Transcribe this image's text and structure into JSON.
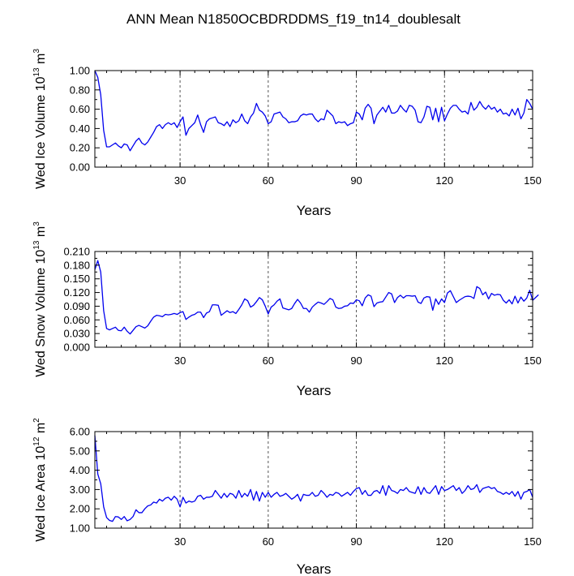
{
  "title": "ANN Mean N1850OCBDRDDMS_f19_tn14_doublesalt",
  "colors": {
    "series": "#0000ee",
    "axis": "#000000",
    "grid": "#555555"
  },
  "chart_data": [
    {
      "type": "line",
      "xlabel": "Years",
      "ylabel": {
        "prefix": "Wed Ice Volume 10",
        "exp": "13",
        "unit": " m",
        "unit_exp": "3"
      },
      "xlim": [
        1,
        150
      ],
      "ylim": [
        0,
        1
      ],
      "xticks": [
        30,
        60,
        90,
        120,
        150
      ],
      "yticks": [
        "0.00",
        "0.20",
        "0.40",
        "0.60",
        "0.80",
        "1.00"
      ],
      "yticks_minor": [
        0.1,
        0.3,
        0.5,
        0.7,
        0.9
      ],
      "grid_x": [
        30,
        60,
        90,
        120
      ],
      "x_start": 1,
      "values": [
        1.0,
        0.93,
        0.75,
        0.38,
        0.21,
        0.21,
        0.23,
        0.25,
        0.22,
        0.2,
        0.24,
        0.23,
        0.17,
        0.22,
        0.27,
        0.3,
        0.25,
        0.23,
        0.26,
        0.31,
        0.36,
        0.42,
        0.44,
        0.4,
        0.44,
        0.46,
        0.44,
        0.46,
        0.41,
        0.47,
        0.52,
        0.33,
        0.4,
        0.43,
        0.46,
        0.54,
        0.44,
        0.36,
        0.47,
        0.5,
        0.51,
        0.52,
        0.46,
        0.45,
        0.43,
        0.47,
        0.42,
        0.49,
        0.46,
        0.48,
        0.55,
        0.48,
        0.45,
        0.52,
        0.56,
        0.66,
        0.59,
        0.57,
        0.53,
        0.45,
        0.47,
        0.55,
        0.56,
        0.57,
        0.52,
        0.5,
        0.46,
        0.47,
        0.47,
        0.48,
        0.53,
        0.55,
        0.54,
        0.55,
        0.55,
        0.5,
        0.47,
        0.5,
        0.49,
        0.59,
        0.56,
        0.53,
        0.45,
        0.47,
        0.46,
        0.47,
        0.43,
        0.45,
        0.46,
        0.57,
        0.55,
        0.49,
        0.61,
        0.65,
        0.61,
        0.45,
        0.54,
        0.58,
        0.62,
        0.57,
        0.64,
        0.56,
        0.56,
        0.58,
        0.64,
        0.6,
        0.57,
        0.64,
        0.63,
        0.59,
        0.47,
        0.46,
        0.52,
        0.63,
        0.62,
        0.49,
        0.61,
        0.47,
        0.62,
        0.48,
        0.55,
        0.61,
        0.64,
        0.64,
        0.6,
        0.57,
        0.58,
        0.55,
        0.67,
        0.59,
        0.62,
        0.68,
        0.63,
        0.6,
        0.64,
        0.6,
        0.62,
        0.57,
        0.6,
        0.55,
        0.56,
        0.53,
        0.6,
        0.54,
        0.61,
        0.5,
        0.56,
        0.7,
        0.66,
        0.6
      ]
    },
    {
      "type": "line",
      "xlabel": "Years",
      "ylabel": {
        "prefix": "Wed Snow Volume 10",
        "exp": "13",
        "unit": " m",
        "unit_exp": "3"
      },
      "xlim": [
        1,
        150
      ],
      "ylim": [
        0,
        0.21
      ],
      "xticks": [
        30,
        60,
        90,
        120,
        150
      ],
      "yticks": [
        "0.000",
        "0.030",
        "0.060",
        "0.090",
        "0.120",
        "0.150",
        "0.180",
        "0.210"
      ],
      "yticks_minor": [
        0.015,
        0.045,
        0.075,
        0.105,
        0.135,
        0.165,
        0.195
      ],
      "grid_x": [
        30,
        60,
        90,
        120
      ],
      "x_start": 1,
      "values": [
        0.17,
        0.19,
        0.165,
        0.08,
        0.041,
        0.038,
        0.041,
        0.044,
        0.037,
        0.036,
        0.044,
        0.035,
        0.029,
        0.037,
        0.045,
        0.048,
        0.045,
        0.042,
        0.047,
        0.057,
        0.066,
        0.07,
        0.069,
        0.067,
        0.072,
        0.071,
        0.072,
        0.074,
        0.072,
        0.076,
        0.078,
        0.061,
        0.066,
        0.07,
        0.072,
        0.077,
        0.077,
        0.065,
        0.075,
        0.078,
        0.093,
        0.093,
        0.092,
        0.07,
        0.075,
        0.08,
        0.076,
        0.078,
        0.074,
        0.083,
        0.093,
        0.106,
        0.102,
        0.088,
        0.092,
        0.1,
        0.109,
        0.104,
        0.09,
        0.073,
        0.088,
        0.093,
        0.101,
        0.106,
        0.086,
        0.084,
        0.082,
        0.085,
        0.096,
        0.105,
        0.097,
        0.085,
        0.085,
        0.077,
        0.088,
        0.094,
        0.099,
        0.097,
        0.094,
        0.1,
        0.107,
        0.104,
        0.088,
        0.085,
        0.086,
        0.09,
        0.091,
        0.097,
        0.096,
        0.104,
        0.102,
        0.091,
        0.108,
        0.115,
        0.112,
        0.089,
        0.097,
        0.099,
        0.1,
        0.11,
        0.12,
        0.117,
        0.098,
        0.109,
        0.114,
        0.108,
        0.113,
        0.113,
        0.112,
        0.113,
        0.099,
        0.096,
        0.108,
        0.111,
        0.11,
        0.081,
        0.106,
        0.094,
        0.106,
        0.098,
        0.119,
        0.124,
        0.111,
        0.098,
        0.103,
        0.107,
        0.111,
        0.112,
        0.111,
        0.107,
        0.133,
        0.129,
        0.115,
        0.121,
        0.106,
        0.118,
        0.114,
        0.116,
        0.115,
        0.103,
        0.097,
        0.104,
        0.095,
        0.112,
        0.097,
        0.11,
        0.101,
        0.108,
        0.125,
        0.103,
        0.109,
        0.115
      ]
    },
    {
      "type": "line",
      "xlabel": "Years",
      "ylabel": {
        "prefix": "Wed Ice Area 10",
        "exp": "12",
        "unit": " m",
        "unit_exp": "2"
      },
      "xlim": [
        1,
        150
      ],
      "ylim": [
        1,
        6
      ],
      "xticks": [
        30,
        60,
        90,
        120,
        150
      ],
      "yticks": [
        "1.00",
        "2.00",
        "3.00",
        "4.00",
        "5.00",
        "6.00"
      ],
      "yticks_minor": [
        1.5,
        2.5,
        3.5,
        4.5,
        5.5
      ],
      "grid_x": [
        30,
        60,
        90,
        120
      ],
      "x_start": 1,
      "values": [
        5.8,
        3.8,
        3.3,
        2.1,
        1.55,
        1.4,
        1.35,
        1.6,
        1.58,
        1.45,
        1.6,
        1.38,
        1.45,
        1.6,
        1.95,
        1.8,
        1.8,
        2.0,
        2.15,
        2.2,
        2.35,
        2.3,
        2.5,
        2.4,
        2.55,
        2.6,
        2.45,
        2.65,
        2.5,
        2.1,
        2.6,
        2.3,
        2.4,
        2.35,
        2.4,
        2.65,
        2.7,
        2.5,
        2.6,
        2.6,
        2.65,
        2.95,
        2.75,
        2.55,
        2.8,
        2.6,
        2.8,
        2.75,
        2.55,
        2.95,
        2.6,
        2.8,
        2.65,
        3.0,
        2.45,
        2.9,
        2.4,
        2.85,
        2.6,
        2.85,
        2.6,
        2.75,
        2.85,
        2.65,
        2.7,
        2.8,
        2.65,
        2.5,
        2.6,
        2.75,
        2.4,
        2.75,
        2.7,
        2.7,
        2.85,
        2.65,
        2.7,
        2.95,
        2.8,
        2.6,
        2.75,
        2.7,
        2.85,
        2.8,
        2.65,
        2.75,
        2.85,
        2.7,
        2.9,
        3.05,
        3.1,
        2.75,
        2.95,
        2.7,
        2.7,
        2.9,
        2.95,
        2.8,
        3.2,
        2.7,
        3.2,
        2.95,
        2.9,
        2.8,
        3.0,
        2.95,
        3.1,
        2.9,
        2.85,
        2.8,
        3.15,
        2.75,
        3.1,
        2.85,
        2.8,
        3.0,
        3.2,
        2.75,
        3.15,
        2.95,
        3.0,
        3.1,
        3.2,
        2.95,
        3.1,
        2.8,
        2.95,
        3.2,
        3.0,
        3.05,
        3.25,
        2.85,
        3.05,
        3.1,
        3.15,
        3.05,
        3.1,
        2.9,
        2.85,
        2.75,
        2.85,
        2.75,
        2.9,
        2.65,
        2.9,
        2.5,
        2.85,
        2.9,
        3.0,
        2.6
      ]
    }
  ]
}
